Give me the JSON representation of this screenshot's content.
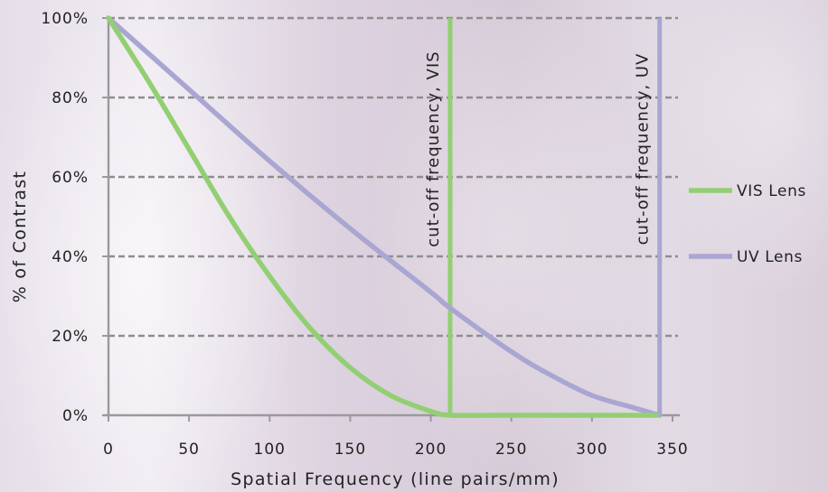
{
  "chart_data": {
    "type": "line",
    "xlabel": "Spatial Frequency (line pairs/mm)",
    "ylabel": "% of Contrast",
    "xlim": [
      0,
      350
    ],
    "ylim": [
      0,
      100
    ],
    "x_ticks": [
      "0",
      "50",
      "100",
      "150",
      "200",
      "250",
      "300",
      "350"
    ],
    "y_ticks": [
      "0%",
      "20%",
      "40%",
      "60%",
      "80%",
      "100%"
    ],
    "grid": "horizontal dashed",
    "legend_position": "right",
    "series": [
      {
        "name": "VIS Lens",
        "color": "#92cf72",
        "points": [
          [
            0,
            100
          ],
          [
            25,
            84
          ],
          [
            50,
            67
          ],
          [
            75,
            50
          ],
          [
            100,
            35
          ],
          [
            125,
            22
          ],
          [
            150,
            12
          ],
          [
            175,
            5
          ],
          [
            200,
            1
          ],
          [
            212,
            0
          ],
          [
            240,
            0
          ],
          [
            300,
            0
          ],
          [
            340,
            0
          ]
        ]
      },
      {
        "name": "UV Lens",
        "color": "#aaa6d2",
        "points": [
          [
            0,
            100
          ],
          [
            50,
            82
          ],
          [
            100,
            64
          ],
          [
            150,
            47
          ],
          [
            200,
            31
          ],
          [
            212,
            27
          ],
          [
            250,
            16
          ],
          [
            275,
            10
          ],
          [
            300,
            5
          ],
          [
            325,
            2
          ],
          [
            342,
            0
          ]
        ]
      }
    ],
    "annotations": [
      {
        "text": "cut-off frequency,  VIS",
        "x": 212,
        "color": "#92cf72"
      },
      {
        "text": "cut-off frequency,  UV",
        "x": 342,
        "color": "#aaa6d2"
      }
    ]
  }
}
